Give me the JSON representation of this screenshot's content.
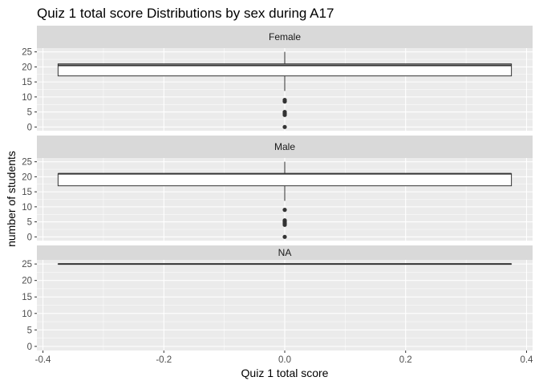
{
  "chart_data": {
    "type": "boxplot",
    "title": "Quiz 1 total score Distributions by sex during A17",
    "xlabel": "Quiz 1 total score",
    "ylabel": "number of students",
    "xlim": [
      -0.41,
      0.41
    ],
    "ylim": [
      -1.25,
      26.25
    ],
    "x_ticks": [
      -0.4,
      -0.2,
      0.0,
      0.2,
      0.4
    ],
    "x_tick_labels": [
      "-0.4",
      "-0.2",
      "0.0",
      "0.2",
      "0.4"
    ],
    "y_ticks": [
      0,
      5,
      10,
      15,
      20,
      25
    ],
    "y_tick_labels": [
      "0",
      "5",
      "10",
      "15",
      "20",
      "25"
    ],
    "grid": true,
    "facets": [
      {
        "label": "Female",
        "box": {
          "x": 0.0,
          "lower_whisker": 12,
          "q1": 17,
          "median": 20.5,
          "q3": 21,
          "upper_whisker": 25,
          "x_range": [
            -0.375,
            0.375
          ]
        },
        "outliers": [
          9,
          8.5,
          5,
          4.5,
          4,
          0
        ]
      },
      {
        "label": "Male",
        "box": {
          "x": 0.0,
          "lower_whisker": 12,
          "q1": 17,
          "median": 21,
          "q3": 21,
          "upper_whisker": 25,
          "x_range": [
            -0.375,
            0.375
          ]
        },
        "outliers": [
          9,
          5.5,
          5,
          4.5,
          4,
          0
        ]
      },
      {
        "label": "NA",
        "box": {
          "x": 0.0,
          "lower_whisker": 25,
          "q1": 25,
          "median": 25,
          "q3": 25,
          "upper_whisker": 25,
          "x_range": [
            -0.375,
            0.375
          ]
        },
        "outliers": []
      }
    ]
  },
  "colors": {
    "panel": "#ebebeb",
    "grid_major": "#ffffff",
    "strip": "#d9d9d9",
    "box_fill": "#ffffff",
    "box_line": "#333333",
    "outlier": "#333333",
    "tick_text": "#4d4d4d",
    "tick_mark": "#333333"
  }
}
